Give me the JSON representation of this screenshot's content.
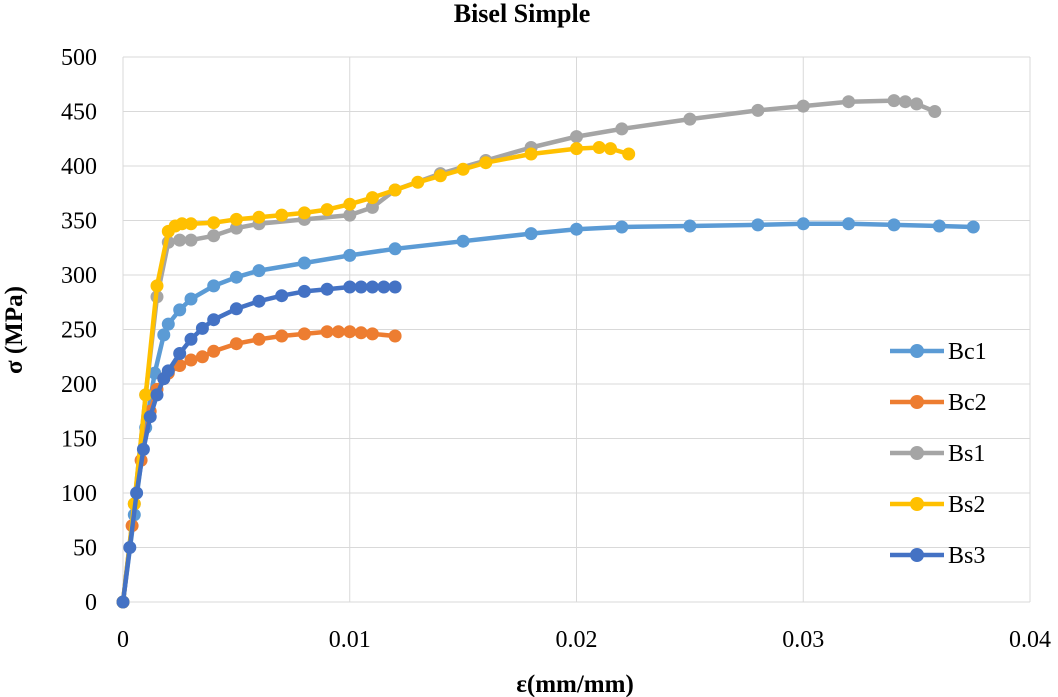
{
  "chart_data": {
    "type": "line",
    "title": "Bisel Simple",
    "xlabel": "ε(mm/mm)",
    "ylabel": "σ (MPa)",
    "xlim": [
      0,
      0.04
    ],
    "ylim": [
      0,
      500
    ],
    "xticks": [
      0,
      0.01,
      0.02,
      0.03,
      0.04
    ],
    "xtick_labels": [
      "0",
      "0.01",
      "0.02",
      "0.03",
      "0.04"
    ],
    "yticks": [
      0,
      50,
      100,
      150,
      200,
      250,
      300,
      350,
      400,
      450,
      500
    ],
    "ytick_labels": [
      "0",
      "50",
      "100",
      "150",
      "200",
      "250",
      "300",
      "350",
      "400",
      "450",
      "500"
    ],
    "grid": true,
    "legend_position": "right",
    "series": [
      {
        "name": "Bc1",
        "color": "#5b9bd5",
        "x": [
          0,
          0.0005,
          0.001,
          0.0014,
          0.0018,
          0.002,
          0.0025,
          0.003,
          0.004,
          0.005,
          0.006,
          0.008,
          0.01,
          0.012,
          0.015,
          0.018,
          0.02,
          0.022,
          0.025,
          0.028,
          0.03,
          0.032,
          0.034,
          0.036,
          0.0375
        ],
        "y": [
          0,
          80,
          160,
          210,
          245,
          255,
          268,
          278,
          290,
          298,
          304,
          311,
          318,
          324,
          331,
          338,
          342,
          344,
          345,
          346,
          347,
          347,
          346,
          345,
          344
        ]
      },
      {
        "name": "Bc2",
        "color": "#ed7d31",
        "x": [
          0,
          0.0004,
          0.0008,
          0.0012,
          0.0015,
          0.0018,
          0.002,
          0.0025,
          0.003,
          0.0035,
          0.004,
          0.005,
          0.006,
          0.007,
          0.008,
          0.009,
          0.0095,
          0.01,
          0.0105,
          0.011,
          0.012
        ],
        "y": [
          0,
          70,
          130,
          175,
          195,
          205,
          210,
          217,
          222,
          225,
          230,
          237,
          241,
          244,
          246,
          248,
          248,
          248,
          247,
          246,
          244
        ]
      },
      {
        "name": "Bs1",
        "color": "#a5a5a5",
        "x": [
          0,
          0.0005,
          0.001,
          0.0015,
          0.002,
          0.0025,
          0.003,
          0.004,
          0.005,
          0.006,
          0.008,
          0.01,
          0.011,
          0.012,
          0.014,
          0.016,
          0.018,
          0.02,
          0.022,
          0.025,
          0.028,
          0.03,
          0.032,
          0.034,
          0.0345,
          0.035,
          0.0358
        ],
        "y": [
          0,
          90,
          190,
          280,
          330,
          332,
          332,
          336,
          343,
          347,
          351,
          355,
          362,
          378,
          393,
          405,
          417,
          427,
          434,
          443,
          451,
          455,
          459,
          460,
          459,
          457,
          450
        ]
      },
      {
        "name": "Bs2",
        "color": "#ffc000",
        "x": [
          0,
          0.0005,
          0.001,
          0.0015,
          0.002,
          0.0023,
          0.0026,
          0.003,
          0.004,
          0.005,
          0.006,
          0.007,
          0.008,
          0.009,
          0.01,
          0.011,
          0.012,
          0.013,
          0.014,
          0.015,
          0.016,
          0.018,
          0.02,
          0.021,
          0.0215,
          0.0223
        ],
        "y": [
          0,
          90,
          190,
          290,
          340,
          345,
          347,
          347,
          348,
          351,
          353,
          355,
          357,
          360,
          365,
          371,
          378,
          385,
          391,
          397,
          403,
          411,
          416,
          417,
          416,
          411
        ]
      },
      {
        "name": "Bs3",
        "color": "#4472c4",
        "x": [
          0,
          0.0003,
          0.0006,
          0.0009,
          0.0012,
          0.0015,
          0.0018,
          0.002,
          0.0025,
          0.003,
          0.0035,
          0.004,
          0.005,
          0.006,
          0.007,
          0.008,
          0.009,
          0.01,
          0.0105,
          0.011,
          0.0115,
          0.012
        ],
        "y": [
          0,
          50,
          100,
          140,
          170,
          190,
          205,
          212,
          228,
          241,
          251,
          259,
          269,
          276,
          281,
          285,
          287,
          289,
          289,
          289,
          289,
          289
        ]
      }
    ]
  }
}
